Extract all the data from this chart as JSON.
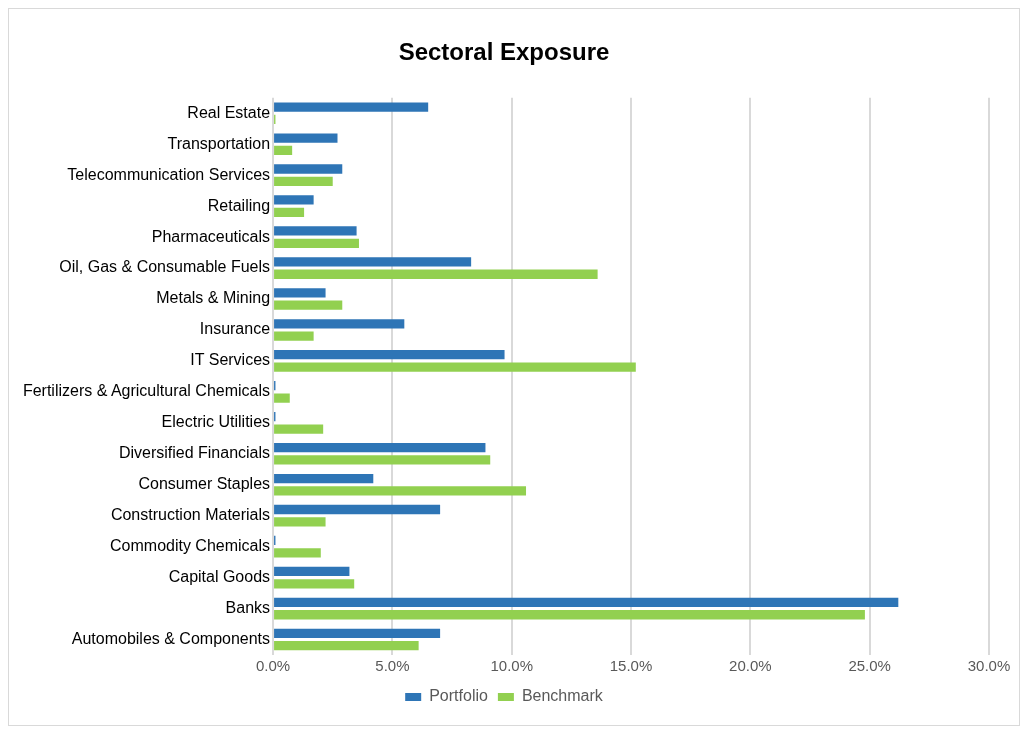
{
  "chart_data": {
    "type": "bar",
    "orientation": "horizontal",
    "title": "Sectoral Exposure",
    "categories": [
      "Real Estate",
      "Transportation",
      "Telecommunication Services",
      "Retailing",
      "Pharmaceuticals",
      "Oil, Gas & Consumable Fuels",
      "Metals & Mining",
      "Insurance",
      "IT Services",
      "Fertilizers & Agricultural Chemicals",
      "Electric Utilities",
      "Diversified Financials",
      "Consumer Staples",
      "Construction Materials",
      "Commodity Chemicals",
      "Capital Goods",
      "Banks",
      "Automobiles & Components"
    ],
    "series": [
      {
        "name": "Portfolio",
        "color": "#2e75b6",
        "values": [
          6.5,
          2.7,
          2.9,
          1.7,
          3.5,
          8.3,
          2.2,
          5.5,
          9.7,
          0.1,
          0.1,
          8.9,
          4.2,
          7.0,
          0.1,
          3.2,
          26.2,
          7.0
        ]
      },
      {
        "name": "Benchmark",
        "color": "#92d050",
        "values": [
          0.1,
          0.8,
          2.5,
          1.3,
          3.6,
          13.6,
          2.9,
          1.7,
          15.2,
          0.7,
          2.1,
          9.1,
          10.6,
          2.2,
          2.0,
          3.4,
          24.8,
          6.1
        ]
      }
    ],
    "xlim": [
      0,
      30
    ],
    "xticks": [
      {
        "value": 0,
        "label": "0.0%"
      },
      {
        "value": 5,
        "label": "5.0%"
      },
      {
        "value": 10,
        "label": "10.0%"
      },
      {
        "value": 15,
        "label": "15.0%"
      },
      {
        "value": 20,
        "label": "20.0%"
      },
      {
        "value": 25,
        "label": "25.0%"
      },
      {
        "value": 30,
        "label": "30.0%"
      }
    ],
    "grid": "x",
    "legend": "bottom"
  }
}
